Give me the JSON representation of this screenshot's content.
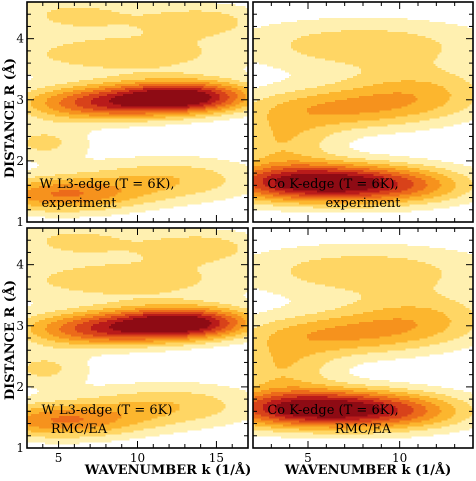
{
  "figure": {
    "y_axis_label": "DISTANCE R (Å)",
    "x_axis_label": "WAVENUMBER k (1/Å)"
  },
  "colors": {
    "levels": [
      "#ffffff",
      "#fff0b0",
      "#ffd664",
      "#fcb62e",
      "#f6921d",
      "#ec6a1a",
      "#d8421a",
      "#b91b1a",
      "#8e0b14"
    ],
    "contour_line": "#a07a50",
    "frame": "#000000"
  },
  "chart_data": [
    {
      "type": "heatmap",
      "panel": "top-left",
      "label_line1": "W L3-edge (T = 6K),",
      "label_line2": "experiment",
      "xlim": [
        3,
        17
      ],
      "ylim": [
        1,
        4.6
      ],
      "xticks": [
        5,
        10,
        15
      ],
      "yticks": [
        1,
        2,
        3,
        4
      ],
      "show_xtick_labels": false,
      "show_ytick_labels": true,
      "peaks": [
        {
          "k": 13.0,
          "R": 3.05,
          "amp": 1.0,
          "sk": 3.0,
          "sr": 0.18
        },
        {
          "k": 7.5,
          "R": 2.95,
          "amp": 0.7,
          "sk": 3.5,
          "sr": 0.2
        },
        {
          "k": 5.0,
          "R": 1.45,
          "amp": 0.55,
          "sk": 3.5,
          "sr": 0.2
        },
        {
          "k": 12.0,
          "R": 1.7,
          "amp": 0.32,
          "sk": 4.0,
          "sr": 0.25
        },
        {
          "k": 9.0,
          "R": 3.75,
          "amp": 0.3,
          "sk": 6.0,
          "sr": 0.25
        },
        {
          "k": 6.0,
          "R": 4.4,
          "amp": 0.25,
          "sk": 3.0,
          "sr": 0.2
        },
        {
          "k": 14.0,
          "R": 4.3,
          "amp": 0.28,
          "sk": 3.0,
          "sr": 0.2
        },
        {
          "k": 4.0,
          "R": 2.3,
          "amp": 0.25,
          "sk": 2.0,
          "sr": 0.2
        }
      ]
    },
    {
      "type": "heatmap",
      "panel": "top-right",
      "label_line1": "Co K-edge (T = 6K),",
      "label_line2": "experiment",
      "xlim": [
        2,
        14
      ],
      "ylim": [
        1,
        4.6
      ],
      "xticks": [
        5,
        10
      ],
      "yticks": [
        1,
        2,
        3,
        4
      ],
      "show_xtick_labels": false,
      "show_ytick_labels": false,
      "peaks": [
        {
          "k": 5.0,
          "R": 1.65,
          "amp": 1.0,
          "sk": 3.5,
          "sr": 0.22
        },
        {
          "k": 10.0,
          "R": 1.6,
          "amp": 0.45,
          "sk": 3.0,
          "sr": 0.22
        },
        {
          "k": 6.0,
          "R": 2.85,
          "amp": 0.4,
          "sk": 3.5,
          "sr": 0.25
        },
        {
          "k": 11.0,
          "R": 3.1,
          "amp": 0.35,
          "sk": 3.0,
          "sr": 0.3
        },
        {
          "k": 8.0,
          "R": 3.9,
          "amp": 0.3,
          "sk": 5.0,
          "sr": 0.3
        },
        {
          "k": 3.5,
          "R": 2.3,
          "amp": 0.3,
          "sk": 2.0,
          "sr": 0.3
        }
      ]
    },
    {
      "type": "heatmap",
      "panel": "bottom-left",
      "label_line1": "W L3-edge (T = 6K)",
      "label_line2": "RMC/EA",
      "xlim": [
        3,
        17
      ],
      "ylim": [
        1,
        4.6
      ],
      "xticks": [
        5,
        10,
        15
      ],
      "yticks": [
        1,
        2,
        3,
        4
      ],
      "show_xtick_labels": true,
      "show_ytick_labels": true,
      "peaks": [
        {
          "k": 13.0,
          "R": 3.05,
          "amp": 1.0,
          "sk": 3.0,
          "sr": 0.18
        },
        {
          "k": 7.5,
          "R": 2.95,
          "amp": 0.7,
          "sk": 3.5,
          "sr": 0.2
        },
        {
          "k": 5.0,
          "R": 1.45,
          "amp": 0.55,
          "sk": 3.5,
          "sr": 0.2
        },
        {
          "k": 12.0,
          "R": 1.7,
          "amp": 0.32,
          "sk": 4.0,
          "sr": 0.25
        },
        {
          "k": 9.0,
          "R": 3.75,
          "amp": 0.3,
          "sk": 6.0,
          "sr": 0.25
        },
        {
          "k": 6.0,
          "R": 4.4,
          "amp": 0.25,
          "sk": 3.0,
          "sr": 0.2
        },
        {
          "k": 14.0,
          "R": 4.3,
          "amp": 0.28,
          "sk": 3.0,
          "sr": 0.2
        },
        {
          "k": 4.0,
          "R": 2.3,
          "amp": 0.25,
          "sk": 2.0,
          "sr": 0.2
        }
      ]
    },
    {
      "type": "heatmap",
      "panel": "bottom-right",
      "label_line1": "Co K-edge (T = 6K),",
      "label_line2": "RMC/EA",
      "xlim": [
        2,
        14
      ],
      "ylim": [
        1,
        4.6
      ],
      "xticks": [
        5,
        10
      ],
      "yticks": [
        1,
        2,
        3,
        4
      ],
      "show_xtick_labels": true,
      "show_ytick_labels": false,
      "peaks": [
        {
          "k": 5.0,
          "R": 1.65,
          "amp": 1.0,
          "sk": 3.5,
          "sr": 0.22
        },
        {
          "k": 10.0,
          "R": 1.6,
          "amp": 0.45,
          "sk": 3.0,
          "sr": 0.22
        },
        {
          "k": 6.0,
          "R": 2.85,
          "amp": 0.4,
          "sk": 3.5,
          "sr": 0.25
        },
        {
          "k": 11.0,
          "R": 3.1,
          "amp": 0.35,
          "sk": 3.0,
          "sr": 0.3
        },
        {
          "k": 8.0,
          "R": 3.9,
          "amp": 0.3,
          "sk": 5.0,
          "sr": 0.3
        },
        {
          "k": 3.5,
          "R": 2.3,
          "amp": 0.3,
          "sk": 2.0,
          "sr": 0.3
        }
      ]
    }
  ]
}
